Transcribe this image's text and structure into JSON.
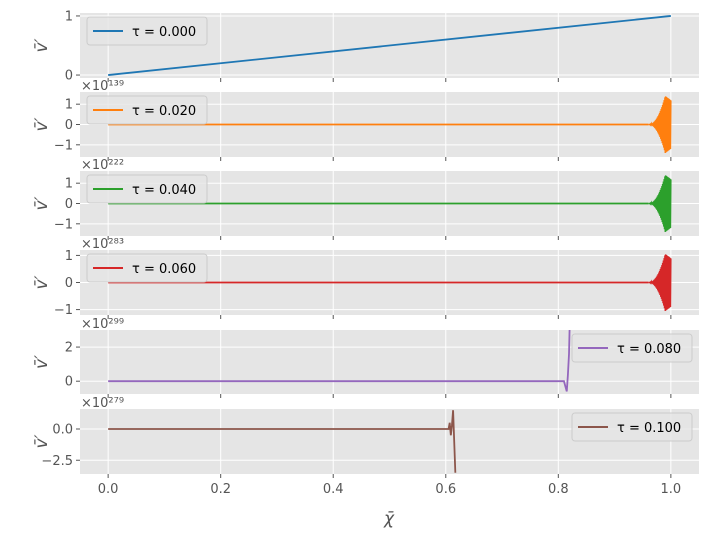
{
  "figure": {
    "xlabel": "χ̄"
  },
  "colors": {
    "panel_bg": "#e5e5e5",
    "grid": "#ffffff",
    "tick_text": "#555555",
    "label_text": "#555555"
  },
  "chart_data": [
    {
      "type": "line",
      "legend_label": "τ = 0.000",
      "legend_position": "top-left",
      "color": "#1f77b4",
      "ylabel": "v̄′",
      "offset_text": "",
      "xlim": [
        -0.05,
        1.05
      ],
      "ylim": [
        -0.05,
        1.05
      ],
      "xticks": [
        0.0,
        0.2,
        0.4,
        0.6,
        0.8,
        1.0
      ],
      "yticks": [
        0,
        1
      ],
      "ytick_labels": [
        "0",
        "1"
      ],
      "series": [
        {
          "name": "τ = 0.000",
          "x": [
            0.0,
            1.0
          ],
          "y": [
            0.0,
            1.0
          ]
        }
      ]
    },
    {
      "type": "line",
      "legend_label": "τ = 0.020",
      "legend_position": "top-left",
      "color": "#ff7f0e",
      "ylabel": "v̄′",
      "offset_text": "×10¹³⁹",
      "xlim": [
        -0.05,
        1.05
      ],
      "ylim": [
        -1.6,
        1.6
      ],
      "xticks": [
        0.0,
        0.2,
        0.4,
        0.6,
        0.8,
        1.0
      ],
      "yticks": [
        -1,
        0,
        1
      ],
      "ytick_labels": [
        "−1",
        "0",
        "1"
      ],
      "oscillation": {
        "x_start": 0.96,
        "x_end": 1.0,
        "x_peak": 0.99,
        "peak_abs": 1.4
      },
      "series": [
        {
          "name": "τ = 0.020",
          "x": [
            0.0,
            0.96
          ],
          "y": [
            0.0,
            0.0
          ]
        }
      ]
    },
    {
      "type": "line",
      "legend_label": "τ = 0.040",
      "legend_position": "top-left",
      "color": "#2ca02c",
      "ylabel": "v̄′",
      "offset_text": "×10²²²",
      "xlim": [
        -0.05,
        1.05
      ],
      "ylim": [
        -1.6,
        1.6
      ],
      "xticks": [
        0.0,
        0.2,
        0.4,
        0.6,
        0.8,
        1.0
      ],
      "yticks": [
        -1,
        0,
        1
      ],
      "ytick_labels": [
        "−1",
        "0",
        "1"
      ],
      "oscillation": {
        "x_start": 0.96,
        "x_end": 1.0,
        "x_peak": 0.99,
        "peak_abs": 1.4
      },
      "series": [
        {
          "name": "τ = 0.040",
          "x": [
            0.0,
            0.96
          ],
          "y": [
            0.0,
            0.0
          ]
        }
      ]
    },
    {
      "type": "line",
      "legend_label": "τ = 0.060",
      "legend_position": "top-left",
      "color": "#d62728",
      "ylabel": "v̄′",
      "offset_text": "×10²⁸³",
      "xlim": [
        -0.05,
        1.05
      ],
      "ylim": [
        -1.2,
        1.2
      ],
      "xticks": [
        0.0,
        0.2,
        0.4,
        0.6,
        0.8,
        1.0
      ],
      "yticks": [
        -1,
        0,
        1
      ],
      "ytick_labels": [
        "−1",
        "0",
        "1"
      ],
      "oscillation": {
        "x_start": 0.96,
        "x_end": 1.0,
        "x_peak": 0.99,
        "peak_abs": 1.05
      },
      "series": [
        {
          "name": "τ = 0.060",
          "x": [
            0.0,
            0.96
          ],
          "y": [
            0.0,
            0.0
          ]
        }
      ]
    },
    {
      "type": "line",
      "legend_label": "τ = 0.080",
      "legend_position": "top-right",
      "color": "#9467bd",
      "ylabel": "v̄′",
      "offset_text": "×10²⁹⁹",
      "xlim": [
        -0.05,
        1.05
      ],
      "ylim": [
        -0.75,
        3.0
      ],
      "xticks": [
        0.0,
        0.2,
        0.4,
        0.6,
        0.8,
        1.0
      ],
      "yticks": [
        0,
        2
      ],
      "ytick_labels": [
        "0",
        "2"
      ],
      "series": [
        {
          "name": "τ = 0.080",
          "x": [
            0.0,
            0.81,
            0.815,
            0.817,
            0.819,
            0.82
          ],
          "y": [
            0.0,
            0.0,
            -0.6,
            0.35,
            1.6,
            3.0
          ]
        }
      ]
    },
    {
      "type": "line",
      "legend_label": "τ = 0.100",
      "legend_position": "top-right",
      "color": "#8c564b",
      "ylabel": "v̄′",
      "offset_text": "×10²⁷⁹",
      "xlim": [
        -0.05,
        1.05
      ],
      "ylim": [
        -3.6,
        1.6
      ],
      "xticks": [
        0.0,
        0.2,
        0.4,
        0.6,
        0.8,
        1.0
      ],
      "xtick_labels": [
        "0.0",
        "0.2",
        "0.4",
        "0.6",
        "0.8",
        "1.0"
      ],
      "yticks": [
        -2.5,
        0.0
      ],
      "ytick_labels": [
        "−2.5",
        "0.0"
      ],
      "series": [
        {
          "name": "τ = 0.100",
          "x": [
            0.0,
            0.605,
            0.607,
            0.609,
            0.611,
            0.613,
            0.615,
            0.617
          ],
          "y": [
            0.0,
            0.0,
            0.5,
            -0.5,
            0.3,
            1.5,
            -1.0,
            -3.5
          ]
        }
      ]
    }
  ]
}
